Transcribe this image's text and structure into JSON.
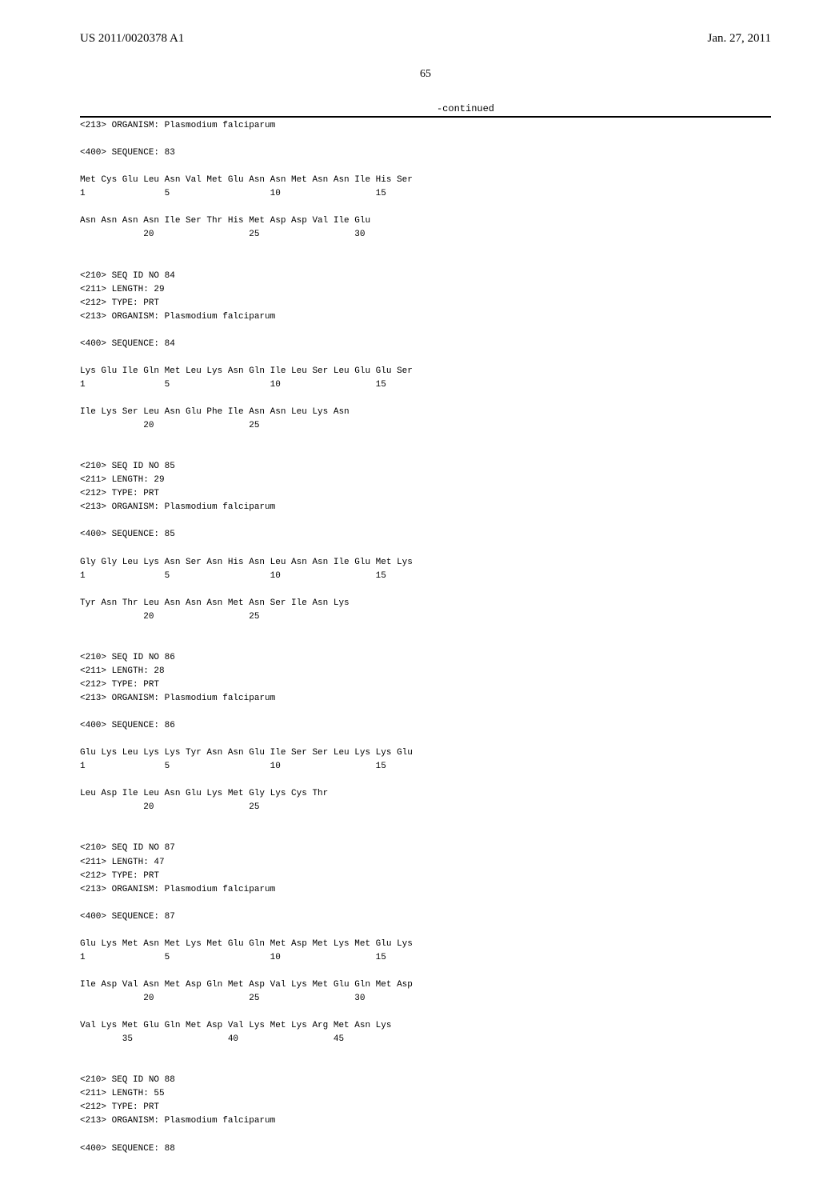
{
  "header": {
    "pub_number": "US 2011/0020378 A1",
    "pub_date": "Jan. 27, 2011"
  },
  "page_number": "65",
  "continued_label": "-continued",
  "seq_text": "<213> ORGANISM: Plasmodium falciparum\n\n<400> SEQUENCE: 83\n\nMet Cys Glu Leu Asn Val Met Glu Asn Asn Met Asn Asn Ile His Ser\n1               5                   10                  15\n\nAsn Asn Asn Asn Ile Ser Thr His Met Asp Asp Val Ile Glu\n            20                  25                  30\n\n\n<210> SEQ ID NO 84\n<211> LENGTH: 29\n<212> TYPE: PRT\n<213> ORGANISM: Plasmodium falciparum\n\n<400> SEQUENCE: 84\n\nLys Glu Ile Gln Met Leu Lys Asn Gln Ile Leu Ser Leu Glu Glu Ser\n1               5                   10                  15\n\nIle Lys Ser Leu Asn Glu Phe Ile Asn Asn Leu Lys Asn\n            20                  25\n\n\n<210> SEQ ID NO 85\n<211> LENGTH: 29\n<212> TYPE: PRT\n<213> ORGANISM: Plasmodium falciparum\n\n<400> SEQUENCE: 85\n\nGly Gly Leu Lys Asn Ser Asn His Asn Leu Asn Asn Ile Glu Met Lys\n1               5                   10                  15\n\nTyr Asn Thr Leu Asn Asn Asn Met Asn Ser Ile Asn Lys\n            20                  25\n\n\n<210> SEQ ID NO 86\n<211> LENGTH: 28\n<212> TYPE: PRT\n<213> ORGANISM: Plasmodium falciparum\n\n<400> SEQUENCE: 86\n\nGlu Lys Leu Lys Lys Tyr Asn Asn Glu Ile Ser Ser Leu Lys Lys Glu\n1               5                   10                  15\n\nLeu Asp Ile Leu Asn Glu Lys Met Gly Lys Cys Thr\n            20                  25\n\n\n<210> SEQ ID NO 87\n<211> LENGTH: 47\n<212> TYPE: PRT\n<213> ORGANISM: Plasmodium falciparum\n\n<400> SEQUENCE: 87\n\nGlu Lys Met Asn Met Lys Met Glu Gln Met Asp Met Lys Met Glu Lys\n1               5                   10                  15\n\nIle Asp Val Asn Met Asp Gln Met Asp Val Lys Met Glu Gln Met Asp\n            20                  25                  30\n\nVal Lys Met Glu Gln Met Asp Val Lys Met Lys Arg Met Asn Lys\n        35                  40                  45\n\n\n<210> SEQ ID NO 88\n<211> LENGTH: 55\n<212> TYPE: PRT\n<213> ORGANISM: Plasmodium falciparum\n\n<400> SEQUENCE: 88"
}
